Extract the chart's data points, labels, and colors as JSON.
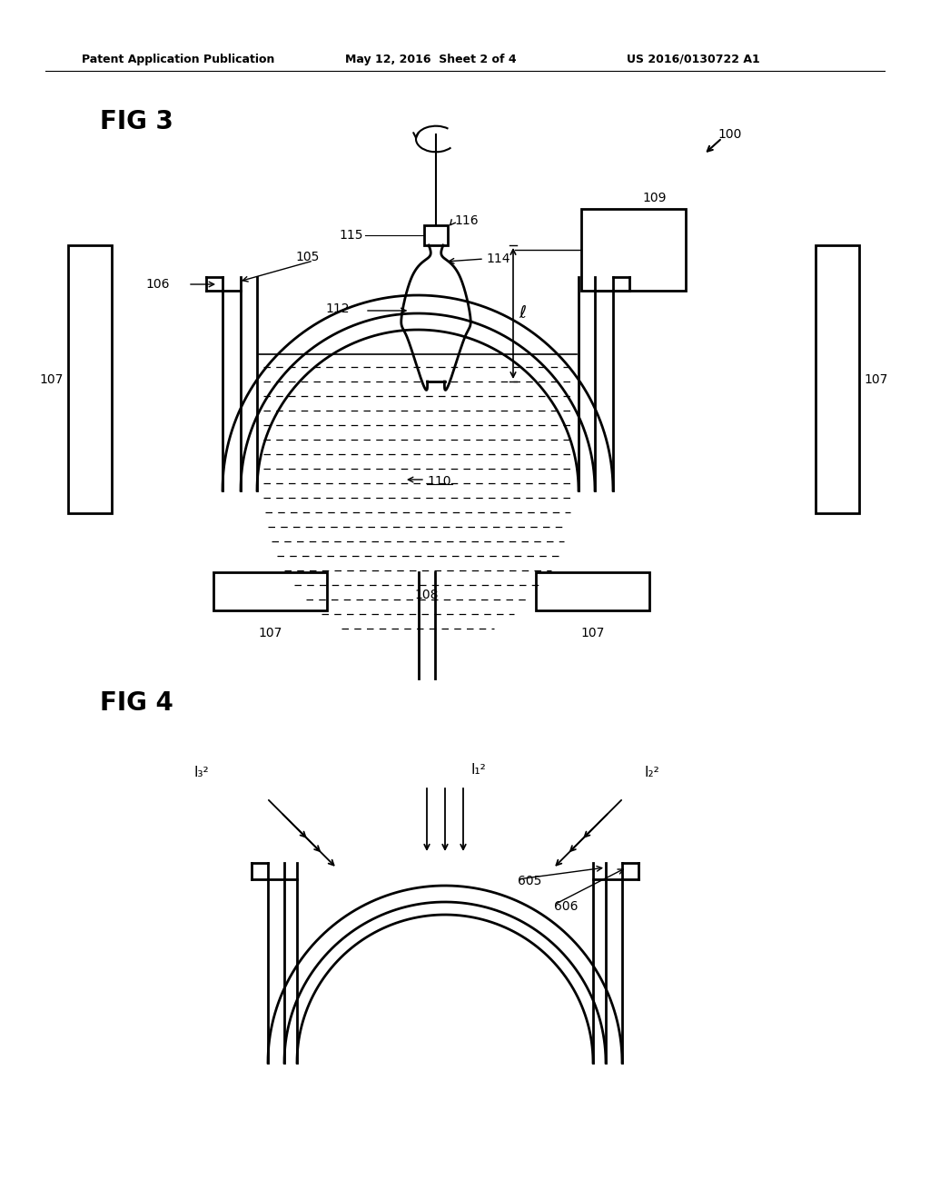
{
  "background_color": "#ffffff",
  "header_text": "Patent Application Publication",
  "header_date": "May 12, 2016  Sheet 2 of 4",
  "header_patent": "US 2016/0130722 A1",
  "fig3_label": "FIG 3",
  "fig4_label": "FIG 4",
  "ref_100": "100",
  "ref_105": "105",
  "ref_106": "106",
  "ref_107": "107",
  "ref_108": "108",
  "ref_109": "109",
  "ref_110": "110",
  "ref_112": "112",
  "ref_114": "114",
  "ref_115": "115",
  "ref_116": "116",
  "ref_605": "605",
  "ref_606": "606",
  "label_l": "ℓ",
  "label_l1": "I₁²",
  "label_l2": "I₂²",
  "label_l3": "I₃²"
}
